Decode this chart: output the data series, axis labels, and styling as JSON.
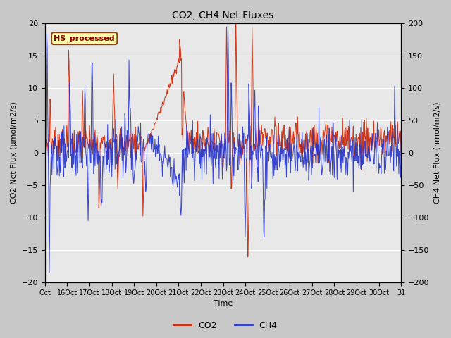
{
  "title": "CO2, CH4 Net Fluxes",
  "xlabel": "Time",
  "ylabel_left": "CO2 Net Flux (μmol/m2/s)",
  "ylabel_right": "CH4 Net Flux (nmol/m2/s)",
  "ylim_left": [
    -20,
    20
  ],
  "ylim_right": [
    -200,
    200
  ],
  "fig_bg_color": "#c8c8c8",
  "plot_bg_color": "#e8e8e8",
  "annotation_text": "HS_processed",
  "annotation_bg": "#ffffaa",
  "annotation_fg": "#8b0000",
  "annotation_border": "#8b4513",
  "co2_color": "#cc2200",
  "ch4_color": "#2233cc",
  "legend_co2": "CO2",
  "legend_ch4": "CH4",
  "x_tick_labels": [
    "Oct",
    "16Oct",
    "17Oct",
    "18Oct",
    "19Oct",
    "20Oct",
    "21Oct",
    "22Oct",
    "23Oct",
    "24Oct",
    "25Oct",
    "26Oct",
    "27Oct",
    "28Oct",
    "29Oct",
    "30Oct",
    "31"
  ],
  "n_days": 16,
  "pts_per_day": 48,
  "seed": 7
}
